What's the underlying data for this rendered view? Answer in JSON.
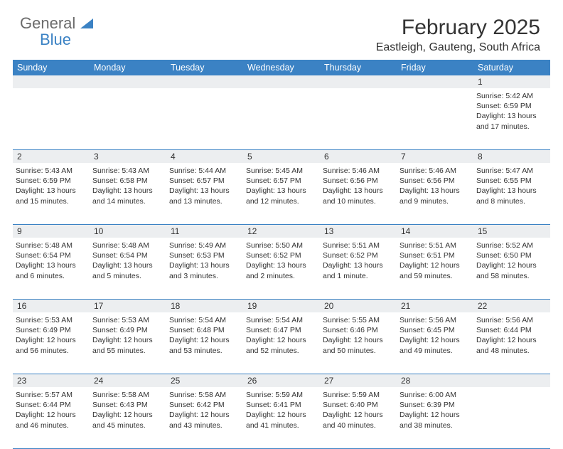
{
  "brand": {
    "name1": "General",
    "name2": "Blue"
  },
  "title": "February 2025",
  "location": "Eastleigh, Gauteng, South Africa",
  "colors": {
    "header_bg": "#3b82c4",
    "daynum_bg": "#eceef0",
    "border": "#3b82c4",
    "logo_gray": "#6b6b6b"
  },
  "dayNames": [
    "Sunday",
    "Monday",
    "Tuesday",
    "Wednesday",
    "Thursday",
    "Friday",
    "Saturday"
  ],
  "weeks": [
    {
      "nums": [
        "",
        "",
        "",
        "",
        "",
        "",
        "1"
      ],
      "cells": [
        null,
        null,
        null,
        null,
        null,
        null,
        {
          "sunrise": "5:42 AM",
          "sunset": "6:59 PM",
          "daylight": "13 hours and 17 minutes."
        }
      ]
    },
    {
      "nums": [
        "2",
        "3",
        "4",
        "5",
        "6",
        "7",
        "8"
      ],
      "cells": [
        {
          "sunrise": "5:43 AM",
          "sunset": "6:59 PM",
          "daylight": "13 hours and 15 minutes."
        },
        {
          "sunrise": "5:43 AM",
          "sunset": "6:58 PM",
          "daylight": "13 hours and 14 minutes."
        },
        {
          "sunrise": "5:44 AM",
          "sunset": "6:57 PM",
          "daylight": "13 hours and 13 minutes."
        },
        {
          "sunrise": "5:45 AM",
          "sunset": "6:57 PM",
          "daylight": "13 hours and 12 minutes."
        },
        {
          "sunrise": "5:46 AM",
          "sunset": "6:56 PM",
          "daylight": "13 hours and 10 minutes."
        },
        {
          "sunrise": "5:46 AM",
          "sunset": "6:56 PM",
          "daylight": "13 hours and 9 minutes."
        },
        {
          "sunrise": "5:47 AM",
          "sunset": "6:55 PM",
          "daylight": "13 hours and 8 minutes."
        }
      ]
    },
    {
      "nums": [
        "9",
        "10",
        "11",
        "12",
        "13",
        "14",
        "15"
      ],
      "cells": [
        {
          "sunrise": "5:48 AM",
          "sunset": "6:54 PM",
          "daylight": "13 hours and 6 minutes."
        },
        {
          "sunrise": "5:48 AM",
          "sunset": "6:54 PM",
          "daylight": "13 hours and 5 minutes."
        },
        {
          "sunrise": "5:49 AM",
          "sunset": "6:53 PM",
          "daylight": "13 hours and 3 minutes."
        },
        {
          "sunrise": "5:50 AM",
          "sunset": "6:52 PM",
          "daylight": "13 hours and 2 minutes."
        },
        {
          "sunrise": "5:51 AM",
          "sunset": "6:52 PM",
          "daylight": "13 hours and 1 minute."
        },
        {
          "sunrise": "5:51 AM",
          "sunset": "6:51 PM",
          "daylight": "12 hours and 59 minutes."
        },
        {
          "sunrise": "5:52 AM",
          "sunset": "6:50 PM",
          "daylight": "12 hours and 58 minutes."
        }
      ]
    },
    {
      "nums": [
        "16",
        "17",
        "18",
        "19",
        "20",
        "21",
        "22"
      ],
      "cells": [
        {
          "sunrise": "5:53 AM",
          "sunset": "6:49 PM",
          "daylight": "12 hours and 56 minutes."
        },
        {
          "sunrise": "5:53 AM",
          "sunset": "6:49 PM",
          "daylight": "12 hours and 55 minutes."
        },
        {
          "sunrise": "5:54 AM",
          "sunset": "6:48 PM",
          "daylight": "12 hours and 53 minutes."
        },
        {
          "sunrise": "5:54 AM",
          "sunset": "6:47 PM",
          "daylight": "12 hours and 52 minutes."
        },
        {
          "sunrise": "5:55 AM",
          "sunset": "6:46 PM",
          "daylight": "12 hours and 50 minutes."
        },
        {
          "sunrise": "5:56 AM",
          "sunset": "6:45 PM",
          "daylight": "12 hours and 49 minutes."
        },
        {
          "sunrise": "5:56 AM",
          "sunset": "6:44 PM",
          "daylight": "12 hours and 48 minutes."
        }
      ]
    },
    {
      "nums": [
        "23",
        "24",
        "25",
        "26",
        "27",
        "28",
        ""
      ],
      "cells": [
        {
          "sunrise": "5:57 AM",
          "sunset": "6:44 PM",
          "daylight": "12 hours and 46 minutes."
        },
        {
          "sunrise": "5:58 AM",
          "sunset": "6:43 PM",
          "daylight": "12 hours and 45 minutes."
        },
        {
          "sunrise": "5:58 AM",
          "sunset": "6:42 PM",
          "daylight": "12 hours and 43 minutes."
        },
        {
          "sunrise": "5:59 AM",
          "sunset": "6:41 PM",
          "daylight": "12 hours and 41 minutes."
        },
        {
          "sunrise": "5:59 AM",
          "sunset": "6:40 PM",
          "daylight": "12 hours and 40 minutes."
        },
        {
          "sunrise": "6:00 AM",
          "sunset": "6:39 PM",
          "daylight": "12 hours and 38 minutes."
        },
        null
      ]
    }
  ],
  "labels": {
    "sunrise": "Sunrise:",
    "sunset": "Sunset:",
    "daylight": "Daylight:"
  }
}
